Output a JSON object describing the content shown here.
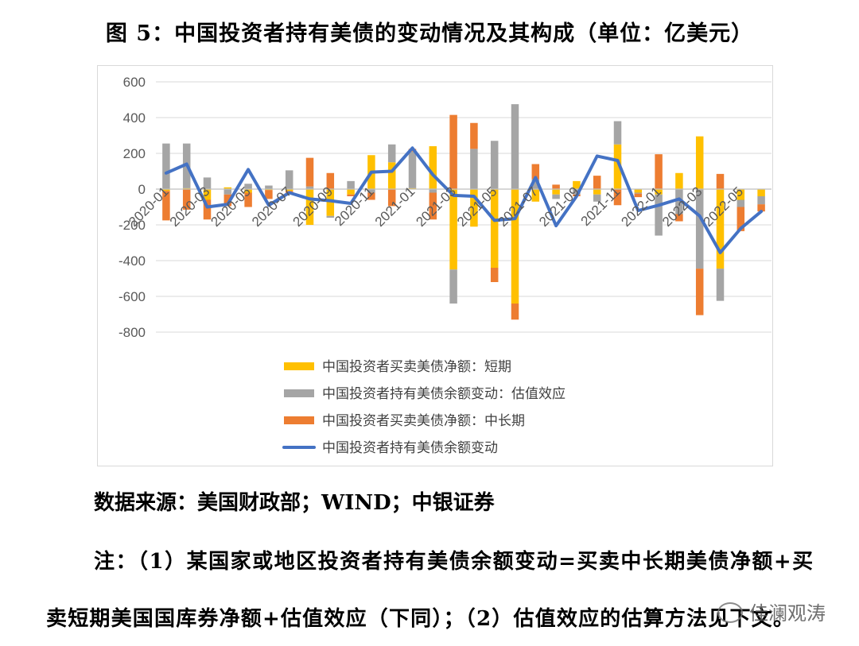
{
  "page": {
    "title": "图 5：中国投资者持有美债的变动情况及其构成（单位：亿美元）",
    "source": "数据来源：美国财政部；WIND；中银证券",
    "note_line1": "注：（1）某国家或地区投资者持有美债余额变动=买卖中长期美债净额+买",
    "note_line2": "卖短期美国国库券净额+估值效应（下同）；（2）估值效应的估算方法见下文。",
    "watermark": "佳澜观涛"
  },
  "chart_data": {
    "type": "bar",
    "title": "",
    "ylim": [
      -800,
      600
    ],
    "yticks": [
      600,
      400,
      200,
      0,
      -200,
      -400,
      -600,
      -800
    ],
    "grid": true,
    "legend_position": "bottom",
    "stacked": true,
    "categories": [
      "2020-01",
      "2020-02",
      "2020-03",
      "2020-04",
      "2020-05",
      "2020-06",
      "2020-07",
      "2020-08",
      "2020-09",
      "2020-10",
      "2020-11",
      "2020-12",
      "2021-01",
      "2021-02",
      "2021-03",
      "2021-04",
      "2021-05",
      "2021-06",
      "2021-07",
      "2021-08",
      "2021-09",
      "2021-10",
      "2021-11",
      "2021-12",
      "2022-01",
      "2022-02",
      "2022-03",
      "2022-04",
      "2022-05",
      "2022-06"
    ],
    "xtick_labels": [
      "2020-01",
      "2020-03",
      "2020-05",
      "2020-07",
      "2020-09",
      "2020-11",
      "2021-01",
      "2021-03",
      "2021-05",
      "2021-07",
      "2021-09",
      "2021-11",
      "2022-01",
      "2022-03",
      "2022-05"
    ],
    "series": [
      {
        "name": "中国投资者买卖美债净额：短期",
        "kind": "bar",
        "color": "#FFC000",
        "values": [
          -10,
          5,
          -60,
          10,
          -20,
          -5,
          -10,
          -200,
          -150,
          -30,
          190,
          150,
          5,
          240,
          -450,
          -210,
          -440,
          -640,
          -70,
          -30,
          45,
          -30,
          250,
          -20,
          -30,
          90,
          295,
          -445,
          -60,
          -40
        ]
      },
      {
        "name": "中国投资者持有美债余额变动：估值效应",
        "kind": "bar",
        "color": "#A5A5A5",
        "values": [
          255,
          250,
          65,
          -30,
          30,
          20,
          105,
          15,
          -10,
          45,
          -20,
          100,
          205,
          -20,
          -190,
          225,
          270,
          475,
          55,
          -25,
          -30,
          -40,
          130,
          -5,
          -230,
          -140,
          -445,
          -180,
          -40,
          -45
        ]
      },
      {
        "name": "中国投资者买卖美债净额：中长期",
        "kind": "bar",
        "color": "#ED7D31",
        "values": [
          -165,
          -115,
          -110,
          -65,
          -80,
          -50,
          -10,
          160,
          90,
          -10,
          -40,
          -95,
          15,
          -150,
          415,
          145,
          -80,
          -90,
          85,
          25,
          -10,
          75,
          -90,
          -20,
          195,
          -40,
          -260,
          85,
          -135,
          -40
        ]
      },
      {
        "name": "中国投资者持有美债余额变动",
        "kind": "line",
        "color": "#4472C4",
        "values": [
          90,
          140,
          -100,
          -85,
          110,
          -90,
          -20,
          -55,
          -65,
          -80,
          95,
          100,
          230,
          80,
          -35,
          -40,
          -175,
          -165,
          65,
          -205,
          -40,
          185,
          160,
          -120,
          -90,
          -55,
          -150,
          -355,
          -220,
          -125
        ]
      }
    ]
  }
}
